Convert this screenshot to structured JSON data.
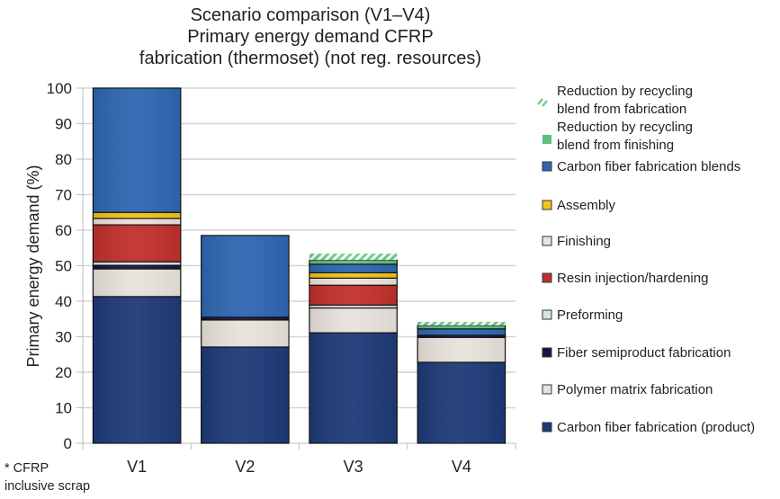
{
  "chart_data": {
    "type": "bar",
    "stacked": true,
    "title": [
      "Scenario comparison (V1–V4)",
      "Primary energy demand CFRP",
      "fabrication (thermoset) (not reg. resources)"
    ],
    "xlabel": "",
    "ylabel": "Primary energy demand (%)",
    "ylim": [
      0,
      100
    ],
    "yticks": [
      0,
      10,
      20,
      30,
      40,
      50,
      60,
      70,
      80,
      90,
      100
    ],
    "grid": true,
    "legend_position": "right",
    "categories": [
      "V1",
      "V2",
      "V3",
      "V4"
    ],
    "note": [
      "* CFRP",
      "inclusive scrap"
    ],
    "series": [
      {
        "name": "Carbon fiber fabrication (product)",
        "color": "#1f3a78",
        "values": [
          41.3,
          27.1,
          31.1,
          22.8
        ]
      },
      {
        "name": "Polymer matrix fabrication",
        "color": "#e8e3dc",
        "values": [
          7.8,
          7.6,
          7.0,
          7.0
        ]
      },
      {
        "name": "Fiber semiproduct fabrication",
        "color": "#1a1440",
        "values": [
          1.0,
          0.8,
          0.0,
          0.6
        ]
      },
      {
        "name": "Preforming",
        "color": "#d6e4ea",
        "values": [
          1.0,
          0.0,
          0.8,
          0.0
        ]
      },
      {
        "name": "Resin injection/hardening",
        "color": "#c1302c",
        "values": [
          10.4,
          0.0,
          5.6,
          0.0
        ]
      },
      {
        "name": "Finishing",
        "color": "#ece2da",
        "values": [
          1.8,
          0.0,
          2.0,
          0.0
        ]
      },
      {
        "name": "Assembly",
        "color": "#f2c31a",
        "values": [
          1.7,
          0.0,
          1.5,
          0.0
        ]
      },
      {
        "name": "Carbon fiber fabrication blends",
        "color": "#2e67b1",
        "values": [
          35.0,
          23.0,
          2.4,
          1.8
        ]
      },
      {
        "name": "Reduction by recycling blend from finishing",
        "color": "#5cc07e",
        "values": [
          0.0,
          0.0,
          1.2,
          1.0
        ]
      },
      {
        "name": "Reduction by recycling blend from fabrication",
        "color": "#6fcf8a",
        "hatched": true,
        "values": [
          0.0,
          0.0,
          1.8,
          1.0
        ]
      }
    ],
    "legend_order": [
      {
        "lines": [
          "Reduction by recycling",
          "blend from fabrication"
        ],
        "series": 9
      },
      {
        "lines": [
          "Reduction by recycling",
          "blend from finishing"
        ],
        "series": 8
      },
      {
        "lines": [
          "Carbon fiber fabrication blends"
        ],
        "series": 7
      },
      {
        "lines": [
          "Assembly"
        ],
        "series": 6
      },
      {
        "lines": [
          "Finishing"
        ],
        "series": 5
      },
      {
        "lines": [
          "Resin injection/hardening"
        ],
        "series": 4
      },
      {
        "lines": [
          "Preforming"
        ],
        "series": 3
      },
      {
        "lines": [
          "Fiber semiproduct fabrication"
        ],
        "series": 2
      },
      {
        "lines": [
          "Polymer matrix fabrication"
        ],
        "series": 1
      },
      {
        "lines": [
          "Carbon fiber fabrication (product)"
        ],
        "series": 0
      }
    ]
  }
}
